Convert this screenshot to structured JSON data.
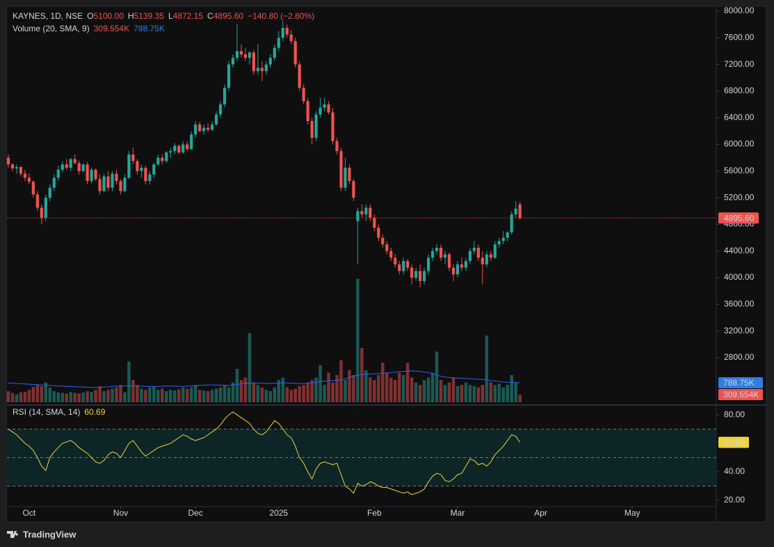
{
  "brand": "TradingView",
  "chart_data": [
    {
      "type": "candlestick",
      "legend": {
        "symbol": "KAYNES, 1D, NSE",
        "o_label": "O",
        "o": "5100.00",
        "h_label": "H",
        "h": "5139.35",
        "l_label": "L",
        "l": "4872.15",
        "c_label": "C",
        "c": "4895.60",
        "change": "−140.80 (−2.80%)"
      },
      "up_color": "#26a69a",
      "down_color": "#ef5350",
      "open": [
        5800,
        5700,
        5640,
        5660,
        5560,
        5500,
        5440,
        5250,
        5050,
        4900,
        5200,
        5350,
        5500,
        5620,
        5700,
        5650,
        5780,
        5720,
        5600,
        5700,
        5450,
        5620,
        5480,
        5300,
        5520,
        5350,
        5560,
        5450,
        5300,
        5500,
        5850,
        5750,
        5600,
        5650,
        5450,
        5550,
        5700,
        5800,
        5750,
        5880,
        5900,
        5980,
        5880,
        6000,
        5930,
        6150,
        6300,
        6200,
        6250,
        6220,
        6300,
        6450,
        6600,
        6850,
        7200,
        7300,
        7400,
        7350,
        7300,
        7380,
        7100,
        7150,
        7100,
        7200,
        7300,
        7450,
        7600,
        7750,
        7650,
        7550,
        7200,
        6850,
        6650,
        6350,
        6100,
        6450,
        6550,
        6600,
        6480,
        6050,
        5900,
        5350,
        5650,
        5450,
        4850,
        5000,
        4950,
        5050,
        4900,
        4750,
        4600,
        4500,
        4400,
        4300,
        4200,
        4100,
        4250,
        4150,
        4000,
        4100,
        3950,
        4100,
        4300,
        4400,
        4450,
        4300,
        4350,
        4150,
        4050,
        4200,
        4150,
        4250,
        4400,
        4450,
        4300,
        4200,
        4350,
        4300,
        4500,
        4550,
        4600,
        4680,
        4950,
        5100
      ],
      "high": [
        5850,
        5720,
        5700,
        5680,
        5620,
        5560,
        5460,
        5300,
        5100,
        5250,
        5400,
        5550,
        5680,
        5750,
        5780,
        5800,
        5850,
        5760,
        5720,
        5740,
        5650,
        5640,
        5550,
        5560,
        5600,
        5600,
        5620,
        5480,
        5550,
        5900,
        5950,
        5780,
        5700,
        5680,
        5600,
        5720,
        5850,
        5850,
        5900,
        5950,
        6020,
        6000,
        6050,
        6050,
        6200,
        6350,
        6340,
        6300,
        6320,
        6350,
        6500,
        6650,
        6900,
        7250,
        7350,
        7800,
        7500,
        7450,
        7400,
        7420,
        7500,
        7250,
        7250,
        7350,
        7500,
        7700,
        7850,
        7800,
        7720,
        7600,
        7250,
        6900,
        6700,
        6400,
        6500,
        6700,
        6700,
        6650,
        6550,
        6100,
        5950,
        5800,
        5700,
        5480,
        5050,
        5100,
        5100,
        5100,
        4950,
        4800,
        4650,
        4550,
        4450,
        4350,
        4250,
        4300,
        4280,
        4200,
        4150,
        4200,
        4150,
        4350,
        4450,
        4500,
        4500,
        4400,
        4380,
        4200,
        4250,
        4300,
        4300,
        4450,
        4550,
        4500,
        4400,
        4400,
        4400,
        4550,
        4600,
        4700,
        4700,
        5000,
        5150,
        5139.35
      ],
      "low": [
        5650,
        5600,
        5560,
        5520,
        5450,
        5400,
        5200,
        5000,
        4800,
        4850,
        5150,
        5300,
        5450,
        5580,
        5620,
        5600,
        5700,
        5550,
        5580,
        5400,
        5420,
        5450,
        5250,
        5280,
        5300,
        5300,
        5400,
        5250,
        5280,
        5480,
        5700,
        5550,
        5500,
        5400,
        5400,
        5500,
        5680,
        5700,
        5720,
        5800,
        5850,
        5850,
        5860,
        5900,
        5920,
        6100,
        6180,
        6150,
        6180,
        6200,
        6280,
        6400,
        6560,
        6800,
        7150,
        7250,
        7300,
        7250,
        7200,
        7050,
        7050,
        6950,
        7050,
        7150,
        7250,
        7400,
        7550,
        7600,
        7500,
        7150,
        6800,
        6600,
        6300,
        6000,
        6050,
        6400,
        6500,
        6450,
        6000,
        5850,
        5300,
        5300,
        5400,
        5150,
        4200,
        4900,
        4850,
        4850,
        4700,
        4550,
        4450,
        4350,
        4250,
        4150,
        4050,
        4050,
        4100,
        3900,
        3950,
        3850,
        3900,
        4050,
        4250,
        4350,
        4250,
        4200,
        4100,
        3950,
        4000,
        4100,
        4100,
        4200,
        4350,
        4250,
        3900,
        4150,
        4250,
        4280,
        4450,
        4500,
        4550,
        4650,
        4900,
        4872.15
      ],
      "close": [
        5700,
        5640,
        5660,
        5560,
        5500,
        5440,
        5250,
        5050,
        4900,
        5200,
        5350,
        5500,
        5620,
        5700,
        5650,
        5780,
        5720,
        5600,
        5700,
        5450,
        5620,
        5480,
        5300,
        5520,
        5350,
        5560,
        5450,
        5300,
        5500,
        5850,
        5750,
        5600,
        5650,
        5450,
        5550,
        5700,
        5800,
        5750,
        5880,
        5900,
        5980,
        5880,
        6000,
        5930,
        6150,
        6300,
        6200,
        6250,
        6220,
        6300,
        6450,
        6600,
        6850,
        7200,
        7300,
        7400,
        7350,
        7300,
        7380,
        7100,
        7150,
        7100,
        7200,
        7300,
        7450,
        7600,
        7750,
        7650,
        7550,
        7200,
        6850,
        6650,
        6350,
        6100,
        6450,
        6550,
        6600,
        6480,
        6050,
        5900,
        5350,
        5650,
        5450,
        5200,
        5000,
        4950,
        5050,
        4900,
        4750,
        4600,
        4500,
        4400,
        4300,
        4200,
        4100,
        4250,
        4150,
        4000,
        4100,
        3950,
        4100,
        4300,
        4400,
        4450,
        4300,
        4350,
        4150,
        4050,
        4200,
        4150,
        4250,
        4400,
        4450,
        4300,
        4200,
        4350,
        4300,
        4500,
        4550,
        4600,
        4680,
        4950,
        5036.4,
        4895.6
      ],
      "xlim": [
        -0.33,
        170.2
      ],
      "xticks": [
        {
          "value": 5,
          "label": "Oct"
        },
        {
          "value": 27,
          "label": "Nov"
        },
        {
          "value": 45,
          "label": "Dec"
        },
        {
          "value": 65,
          "label": "2025"
        },
        {
          "value": 88,
          "label": "Feb"
        },
        {
          "value": 108,
          "label": "Mar"
        },
        {
          "value": 128,
          "label": "Apr"
        },
        {
          "value": 150,
          "label": "May"
        }
      ],
      "ylim": [
        2110,
        8063
      ],
      "yticks": [
        {
          "value": 8000,
          "label": "8000.00"
        },
        {
          "value": 7600,
          "label": "7600.00"
        },
        {
          "value": 7200,
          "label": "7200.00"
        },
        {
          "value": 6800,
          "label": "6800.00"
        },
        {
          "value": 6400,
          "label": "6400.00"
        },
        {
          "value": 6000,
          "label": "6000.00"
        },
        {
          "value": 5600,
          "label": "5600.00"
        },
        {
          "value": 5200,
          "label": "5200.00"
        },
        {
          "value": 4800,
          "label": "4800.00"
        },
        {
          "value": 4400,
          "label": "4400.00"
        },
        {
          "value": 4000,
          "label": "4000.00"
        },
        {
          "value": 3600,
          "label": "3600.00"
        },
        {
          "value": 3200,
          "label": "3200.00"
        },
        {
          "value": 2800,
          "label": "2800.00"
        }
      ]
    },
    {
      "type": "bar",
      "title": "Volume (20, SMA, 9)",
      "ylim": [
        0,
        16000
      ],
      "series": [
        {
          "name": "Volume",
          "color": "#ef5350",
          "values": [
            450,
            380,
            320,
            400,
            420,
            500,
            620,
            700,
            650,
            800,
            600,
            450,
            400,
            380,
            350,
            420,
            380,
            350,
            400,
            450,
            420,
            500,
            650,
            450,
            500,
            550,
            600,
            700,
            400,
            1650,
            900,
            700,
            550,
            500,
            600,
            650,
            500,
            550,
            450,
            500,
            480,
            520,
            600,
            550,
            600,
            700,
            500,
            480,
            450,
            500,
            550,
            600,
            700,
            600,
            800,
            1350,
            900,
            1000,
            2800,
            800,
            700,
            600,
            500,
            450,
            600,
            900,
            1000,
            600,
            500,
            550,
            650,
            700,
            800,
            900,
            1000,
            1500,
            700,
            1200,
            800,
            1100,
            1700,
            900,
            1300,
            1100,
            5000,
            2200,
            1300,
            1000,
            900,
            1100,
            1600,
            1200,
            1000,
            900,
            1200,
            1100,
            1600,
            1000,
            800,
            700,
            900,
            1000,
            1200,
            2050,
            900,
            700,
            800,
            1000,
            650,
            700,
            800,
            700,
            650,
            600,
            700,
            2700,
            800,
            700,
            750,
            600,
            700,
            1100,
            800,
            309.554
          ],
          "last_label": "309.554K"
        },
        {
          "name": "SMA",
          "color": "#2962ff",
          "values": [
            780,
            770,
            760,
            750,
            740,
            730,
            720,
            710,
            700,
            690,
            680,
            670,
            660,
            650,
            640,
            640,
            630,
            620,
            620,
            610,
            600,
            600,
            600,
            610,
            620,
            640,
            650,
            650,
            660,
            660,
            670,
            660,
            650,
            640,
            640,
            630,
            640,
            650,
            660,
            650,
            650,
            640,
            640,
            650,
            660,
            670,
            680,
            690,
            700,
            700,
            700,
            690,
            690,
            680,
            700,
            720,
            740,
            760,
            780,
            780,
            780,
            770,
            760,
            760,
            770,
            780,
            790,
            780,
            770,
            760,
            750,
            760,
            770,
            790,
            810,
            830,
            850,
            870,
            880,
            890,
            900,
            950,
            1000,
            1050,
            1100,
            1120,
            1130,
            1140,
            1150,
            1160,
            1170,
            1180,
            1200,
            1220,
            1240,
            1250,
            1260,
            1270,
            1260,
            1240,
            1220,
            1200,
            1150,
            1100,
            1050,
            1020,
            1000,
            990,
            980,
            970,
            960,
            950,
            940,
            930,
            920,
            900,
            880,
            860,
            840,
            820,
            810,
            800,
            795,
            788.75
          ],
          "last_label": "788.75K"
        }
      ]
    },
    {
      "type": "line",
      "title": "RSI (14, SMA, 14)",
      "color": "#f0d43a",
      "values": [
        70,
        68,
        66,
        63,
        60,
        58,
        55,
        50,
        44,
        41,
        50,
        54,
        57,
        60,
        61,
        62,
        60,
        57,
        55,
        53,
        50,
        47,
        46,
        48,
        52,
        54,
        53,
        50,
        55,
        60,
        62,
        58,
        54,
        51,
        53,
        55,
        57,
        58,
        59,
        60,
        62,
        64,
        66,
        65,
        63,
        62,
        63,
        64,
        66,
        68,
        70,
        73,
        77,
        80,
        82,
        80,
        78,
        76,
        74,
        70,
        67,
        66,
        68,
        72,
        76,
        74,
        70,
        66,
        64,
        58,
        50,
        46,
        40,
        35,
        42,
        46,
        47,
        46,
        45,
        46,
        38,
        30,
        28,
        25,
        32,
        30,
        31,
        33,
        32,
        30,
        29,
        29,
        28,
        27,
        26,
        25,
        26,
        24,
        25,
        26,
        28,
        33,
        37,
        39,
        38,
        34,
        33,
        35,
        38,
        39,
        44,
        49,
        48,
        45,
        46,
        44,
        47,
        52,
        55,
        58,
        62,
        66,
        65,
        60.69
      ],
      "last_label": "60.69",
      "band": [
        30,
        70
      ],
      "middle": 50,
      "ylim": [
        15.6,
        85.9
      ],
      "yticks": [
        {
          "value": 80,
          "label": "80.00"
        },
        {
          "value": 40,
          "label": "40.00"
        },
        {
          "value": 20,
          "label": "20.00"
        }
      ]
    }
  ]
}
